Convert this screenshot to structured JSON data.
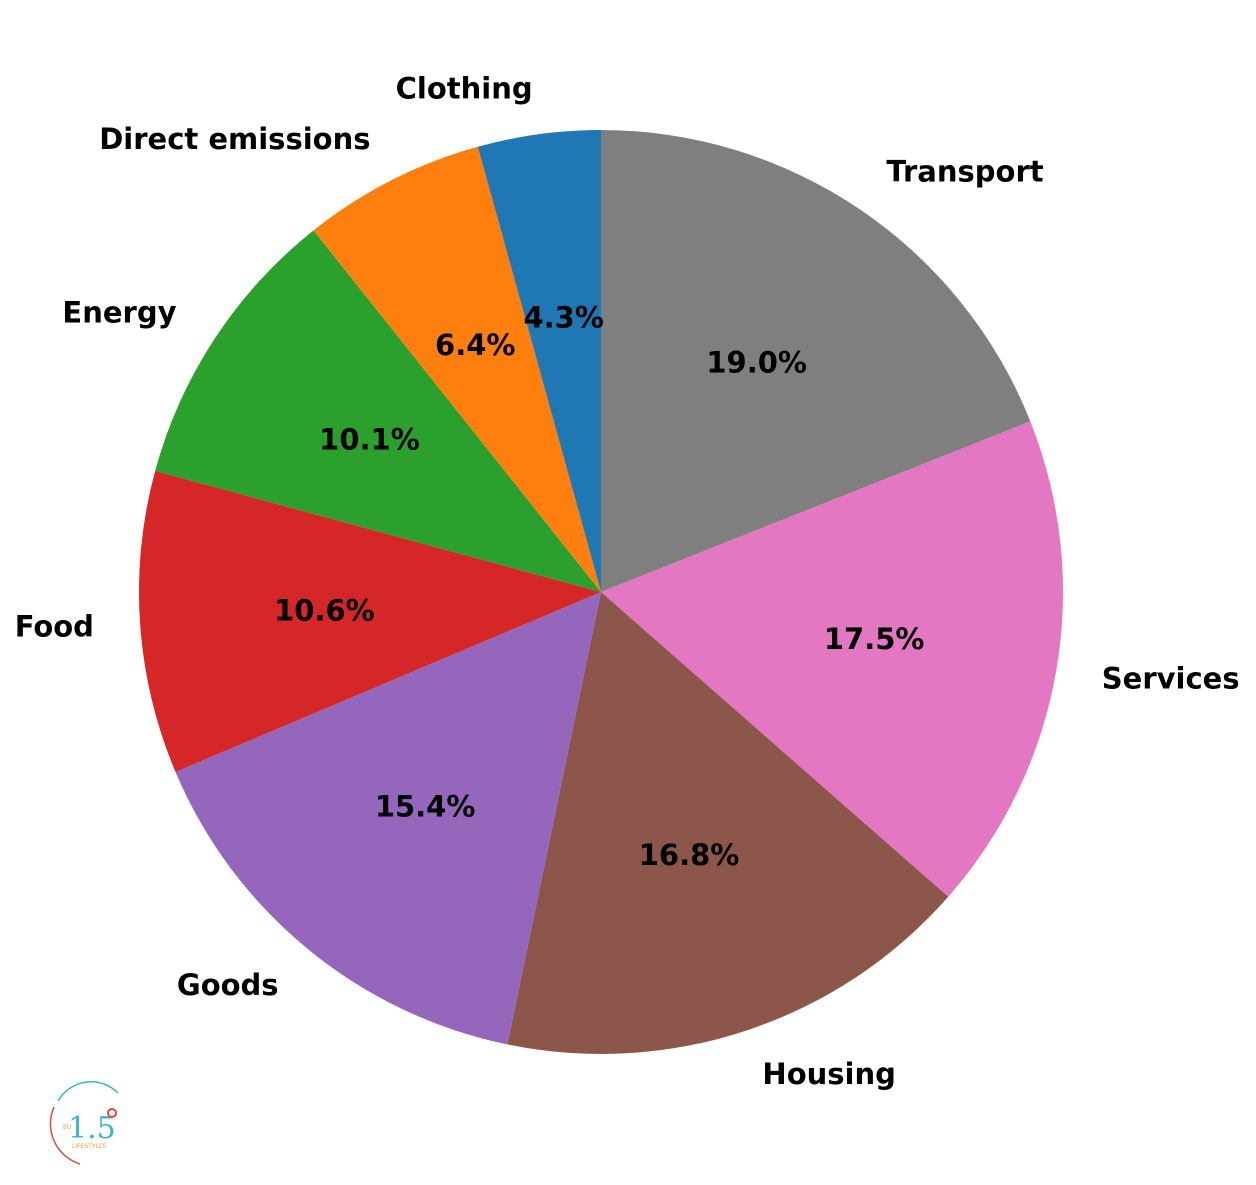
{
  "chart_data": {
    "type": "pie",
    "start_angle_deg": 90,
    "direction": "clockwise",
    "slices": [
      {
        "label": "Transport",
        "value": 19.0,
        "pct_label": "19.0%",
        "color": "#7f7f7f"
      },
      {
        "label": "Services",
        "value": 17.5,
        "pct_label": "17.5%",
        "color": "#e377c2"
      },
      {
        "label": "Housing",
        "value": 16.8,
        "pct_label": "16.8%",
        "color": "#8c564b"
      },
      {
        "label": "Goods",
        "value": 15.4,
        "pct_label": "15.4%",
        "color": "#9467bd"
      },
      {
        "label": "Food",
        "value": 10.6,
        "pct_label": "10.6%",
        "color": "#d62728"
      },
      {
        "label": "Energy",
        "value": 10.1,
        "pct_label": "10.1%",
        "color": "#2ca02c"
      },
      {
        "label": "Direct emissions",
        "value": 6.4,
        "pct_label": "6.4%",
        "color": "#ff7f0e"
      },
      {
        "label": "Clothing",
        "value": 4.3,
        "pct_label": "4.3%",
        "color": "#1f77b4"
      }
    ],
    "title": "",
    "legend": "none"
  },
  "logo": {
    "digits": "1.5",
    "side_text": "EU",
    "bottom_text": "LIFESTYLES",
    "accent_teal": "#39b9c9",
    "accent_red": "#e8483b",
    "accent_orange": "#e8a33a"
  }
}
